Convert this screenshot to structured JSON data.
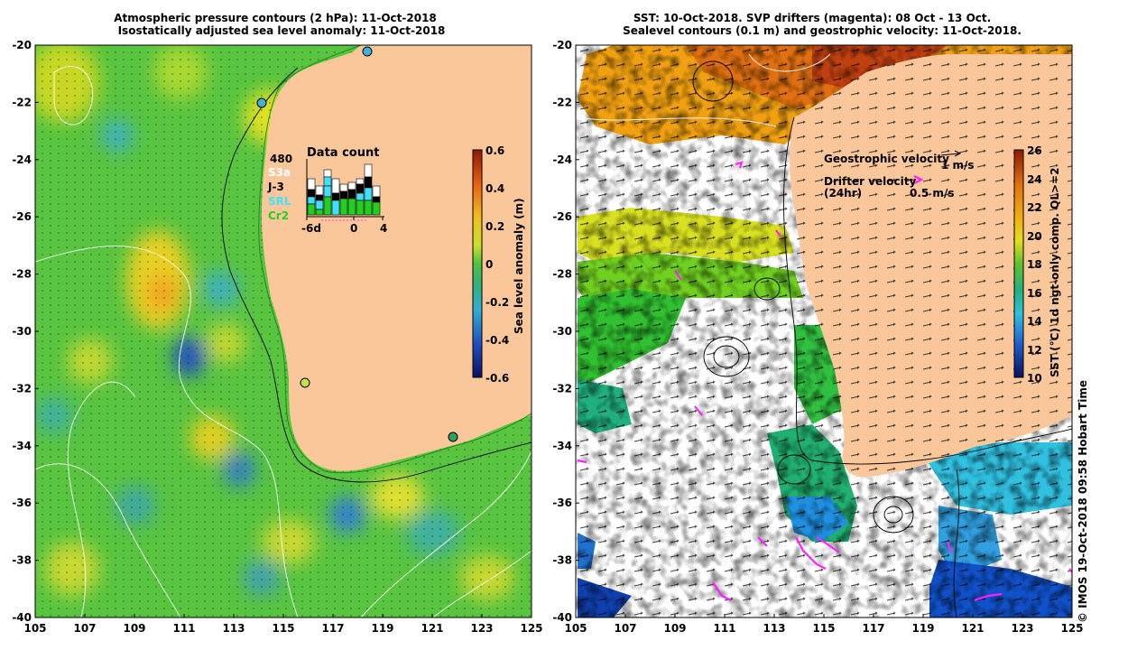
{
  "left": {
    "title_line1": "Atmospheric pressure contours (2 hPa): 11-Oct-2018",
    "title_line2": "Isostatically adjusted sea level anomaly: 11-Oct-2018",
    "x_ticks": [
      "105",
      "107",
      "109",
      "111",
      "113",
      "115",
      "117",
      "119",
      "121",
      "123",
      "125"
    ],
    "y_ticks": [
      "-20",
      "-22",
      "-24",
      "-26",
      "-28",
      "-30",
      "-32",
      "-34",
      "-36",
      "-38",
      "-40"
    ],
    "colorbar": {
      "label": "Sea level anomaly (m)",
      "ticks": [
        "0.6",
        "0.4",
        "0.2",
        "0",
        "-0.2",
        "-0.4",
        "-0.6"
      ]
    },
    "data_count": {
      "title": "Data count",
      "total": "480",
      "legend": [
        {
          "name": "S3a",
          "color": "#ffffff"
        },
        {
          "name": "J-3",
          "color": "#000000"
        },
        {
          "name": "SRL",
          "color": "#40e0ff"
        },
        {
          "name": "Cr2",
          "color": "#20d020"
        }
      ],
      "axis_ticks": [
        "-6d",
        "0",
        "4"
      ]
    }
  },
  "right": {
    "title_line1": "SST: 10-Oct-2018. SVP drifters (magenta): 08 Oct - 13 Oct.",
    "title_line2": "Sealevel contours (0.1 m) and geostrophic velocity: 11-Oct-2018.",
    "x_ticks": [
      "105",
      "107",
      "109",
      "111",
      "113",
      "115",
      "117",
      "119",
      "121",
      "123",
      "125"
    ],
    "y_ticks": [
      "-20",
      "-22",
      "-24",
      "-26",
      "-28",
      "-30",
      "-32",
      "-34",
      "-36",
      "-38",
      "-40"
    ],
    "legend_geo_label": "Geostrophic velocity",
    "legend_geo_scale": "1 m/s",
    "legend_drifter_label": "Drifter velocity",
    "legend_drifter_sub": "(24hr)",
    "legend_drifter_scale": "0.5 m/s",
    "colorbar": {
      "label": "SST (°C) 1d ngt-only comp. QL>=2",
      "ticks": [
        "26",
        "24",
        "22",
        "20",
        "18",
        "16",
        "14",
        "12",
        "10"
      ]
    },
    "credit": "© IMOS 19-Oct-2018 09:58 Hobart Time"
  },
  "colors": {
    "land": "#fac79a"
  }
}
